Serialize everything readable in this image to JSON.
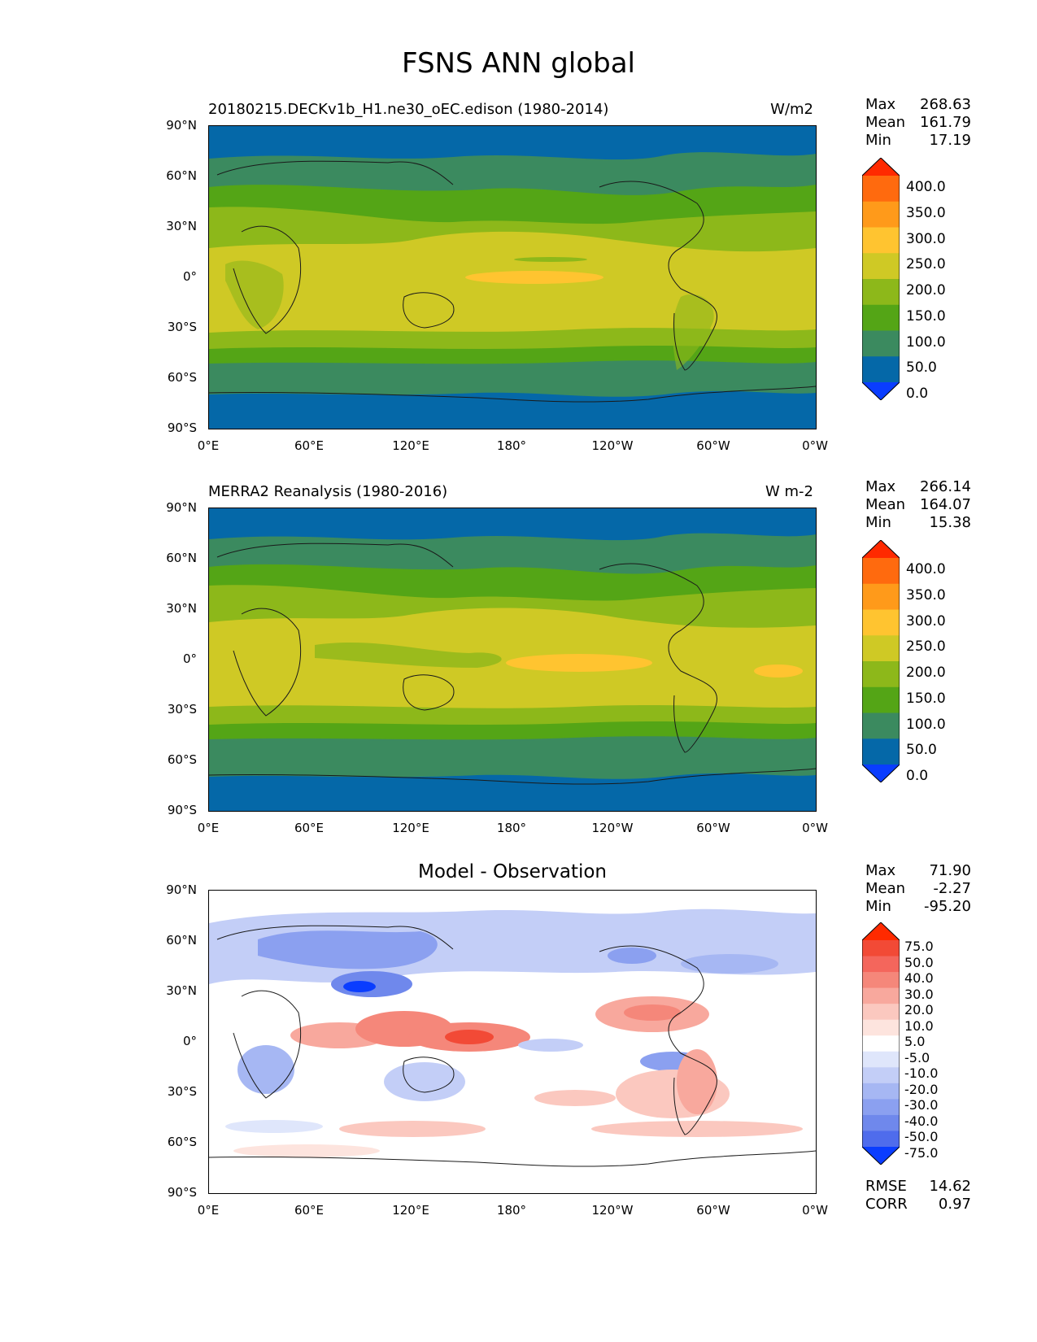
{
  "figure": {
    "title": "FSNS ANN global"
  },
  "axes": {
    "lat_labels": [
      "90°N",
      "60°N",
      "30°N",
      "0°",
      "30°S",
      "60°S",
      "90°S"
    ],
    "lon_labels": [
      "0°E",
      "60°E",
      "120°E",
      "180°",
      "120°W",
      "60°W",
      "0°W"
    ]
  },
  "panels": [
    {
      "title_left": "20180215.DECKv1b_H1.ne30_oEC.edison (1980-2014)",
      "title_right": "W/m2",
      "stats": {
        "max_label": "Max",
        "max_value": "268.63",
        "mean_label": "Mean",
        "mean_value": "161.79",
        "min_label": "Min",
        "min_value": "17.19"
      },
      "colorbar": {
        "labels": [
          "400.0",
          "350.0",
          "300.0",
          "250.0",
          "200.0",
          "150.0",
          "100.0",
          "50.0",
          "0.0"
        ],
        "colors": [
          "#ff2a00",
          "#ff6a0e",
          "#ff9a1a",
          "#ffc430",
          "#cfc925",
          "#8db81a",
          "#54a516",
          "#3b8a5f",
          "#0568a8",
          "#0a3dff"
        ]
      }
    },
    {
      "title_left": "MERRA2 Reanalysis (1980-2016)",
      "title_right": "W m-2",
      "stats": {
        "max_label": "Max",
        "max_value": "266.14",
        "mean_label": "Mean",
        "mean_value": "164.07",
        "min_label": "Min",
        "min_value": "15.38"
      },
      "colorbar": {
        "labels": [
          "400.0",
          "350.0",
          "300.0",
          "250.0",
          "200.0",
          "150.0",
          "100.0",
          "50.0",
          "0.0"
        ],
        "colors": [
          "#ff2a00",
          "#ff6a0e",
          "#ff9a1a",
          "#ffc430",
          "#cfc925",
          "#8db81a",
          "#54a516",
          "#3b8a5f",
          "#0568a8",
          "#0a3dff"
        ]
      }
    },
    {
      "title_center": "Model - Observation",
      "stats": {
        "max_label": "Max",
        "max_value": "71.90",
        "mean_label": "Mean",
        "mean_value": "-2.27",
        "min_label": "Min",
        "min_value": "-95.20"
      },
      "colorbar": {
        "labels": [
          "75.0",
          "50.0",
          "40.0",
          "30.0",
          "20.0",
          "10.0",
          "5.0",
          "-5.0",
          "-10.0",
          "-20.0",
          "-30.0",
          "-40.0",
          "-50.0",
          "-75.0"
        ],
        "colors": [
          "#ff2a00",
          "#f24a36",
          "#f4665c",
          "#f5877a",
          "#f8a89d",
          "#fbc8bf",
          "#fde4de",
          "#ffffff",
          "#dfe6fb",
          "#c3cef7",
          "#a6b7f3",
          "#8ba0f0",
          "#6f88ec",
          "#4f6cec",
          "#0a3dff"
        ]
      },
      "error_stats": {
        "rmse_label": "RMSE",
        "rmse_value": "14.62",
        "corr_label": "CORR",
        "corr_value": "0.97"
      }
    }
  ]
}
